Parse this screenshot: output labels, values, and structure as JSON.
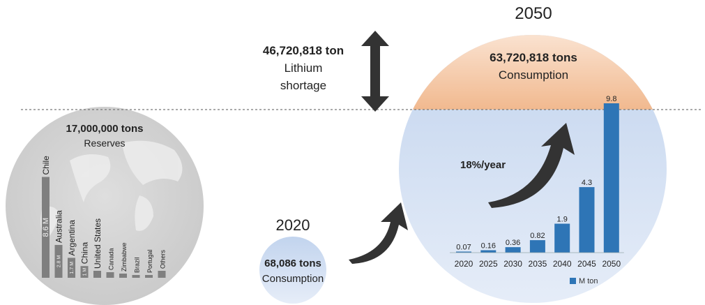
{
  "reserves": {
    "amount": "17,000,000 tons",
    "label": "Reserves",
    "countries": [
      {
        "name": "Chile",
        "value": 8.6,
        "value_label": "8.6 M"
      },
      {
        "name": "Australia",
        "value": 2.8,
        "value_label": "2.8 M"
      },
      {
        "name": "Argentina",
        "value": 1.7,
        "value_label": "1.7 M"
      },
      {
        "name": "China",
        "value": 1.0,
        "value_label": "1 M"
      },
      {
        "name": "United States",
        "value": null,
        "value_label": ""
      },
      {
        "name": "Canada",
        "value": null,
        "value_label": ""
      },
      {
        "name": "Zimbabwe",
        "value": null,
        "value_label": ""
      },
      {
        "name": "Brazil",
        "value": null,
        "value_label": ""
      },
      {
        "name": "Portugal",
        "value": null,
        "value_label": ""
      },
      {
        "name": "Others",
        "value": null,
        "value_label": ""
      }
    ]
  },
  "shortage": {
    "amount": "46,720,818 ton",
    "line1": "Lithium",
    "line2": "shortage"
  },
  "year2020": {
    "year": "2020",
    "amount": "68,086 tons",
    "label": "Consumption"
  },
  "year2050": {
    "year": "2050",
    "amount": "63,720,818 tons",
    "label": "Consumption"
  },
  "growth": {
    "label": "18%/year"
  },
  "colors": {
    "gray_circle": "#d4d4d4",
    "gray_bar": "#7f7f7f",
    "blue_circle_light": "#dce6f5",
    "blue_circle": "#b9cdea",
    "orange_cap": "#f3c39f",
    "blue_bar": "#2e75b6",
    "arrow": "#333333"
  },
  "chart_data": {
    "type": "bar",
    "categories": [
      "2020",
      "2025",
      "2030",
      "2035",
      "2040",
      "2045",
      "2050"
    ],
    "series": [
      {
        "name": "M ton",
        "values": [
          0.07,
          0.16,
          0.36,
          0.82,
          1.9,
          4.3,
          9.8
        ]
      }
    ],
    "data_labels": [
      "0.07",
      "0.16",
      "0.36",
      "0.82",
      "1.9",
      "4.3",
      "9.8"
    ],
    "legend": "bottom-right"
  }
}
